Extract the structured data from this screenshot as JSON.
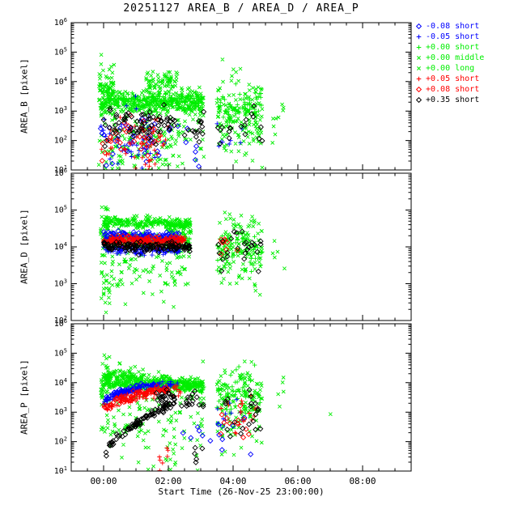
{
  "palette": {
    "black": "#000000",
    "blue": "#0000ff",
    "green": "#00ee00",
    "red": "#ff0000"
  },
  "legend": {
    "items": [
      {
        "symbol": "diamond",
        "color": "blue",
        "label": "-0.08 short"
      },
      {
        "symbol": "plus",
        "color": "blue",
        "label": "-0.05 short"
      },
      {
        "symbol": "plus",
        "color": "green",
        "label": "+0.00 short"
      },
      {
        "symbol": "cross",
        "color": "green",
        "label": "+0.00 middle"
      },
      {
        "symbol": "cross",
        "color": "green",
        "label": "+0.00 long"
      },
      {
        "symbol": "plus",
        "color": "red",
        "label": "+0.05 short"
      },
      {
        "symbol": "diamond",
        "color": "red",
        "label": "+0.08 short"
      },
      {
        "symbol": "diamond",
        "color": "black",
        "label": "+0.35 short"
      }
    ]
  },
  "chart_data": {
    "type": "scatter",
    "title": "20251127 AREA_B / AREA_D / AREA_P",
    "xlabel": "Start Time (26-Nov-25 23:00:00)",
    "x_axis": {
      "min": 0,
      "max": 10.5,
      "unit": "hours since 26-Nov-25 23:00:00",
      "minor_step": 0.5,
      "major_ticks": [
        {
          "pos": 1,
          "label": "00:00"
        },
        {
          "pos": 3,
          "label": "02:00"
        },
        {
          "pos": 5,
          "label": "04:00"
        },
        {
          "pos": 7,
          "label": "06:00"
        },
        {
          "pos": 9,
          "label": "08:00"
        }
      ]
    },
    "panels": [
      {
        "ylabel": "AREA_B [pixel]",
        "ylog_min": 1,
        "ylog_max": 6,
        "series": [
          {
            "name": "+0.00 long",
            "symbol": "cross",
            "color": "green",
            "clusters": [
              [
                0.85,
                4.1,
                2.2,
                2.2,
                0.6,
                150
              ],
              [
                4.5,
                5.9,
                2.2,
                2.2,
                0.6,
                50
              ],
              [
                1.0,
                3.0,
                1.3,
                1.3,
                0.25,
                30
              ],
              [
                6.2,
                6.6,
                2.4,
                2.4,
                0.4,
                4
              ]
            ]
          },
          {
            "name": "+0.00 middle",
            "symbol": "cross",
            "color": "green",
            "clusters": [
              [
                0.85,
                1.35,
                3.6,
                3.6,
                0.45,
                90
              ],
              [
                1.0,
                4.1,
                3.25,
                3.3,
                0.25,
                240
              ],
              [
                2.3,
                3.3,
                3.95,
                4.05,
                0.18,
                70
              ],
              [
                4.5,
                5.9,
                3.0,
                3.0,
                0.55,
                110
              ],
              [
                6.2,
                6.6,
                2.7,
                2.7,
                0.45,
                5
              ]
            ]
          },
          {
            "name": "+0.00 short",
            "symbol": "plus",
            "color": "green",
            "clusters": [
              [
                0.9,
                4.1,
                3.3,
                3.35,
                0.12,
                220
              ],
              [
                4.5,
                5.9,
                3.1,
                3.1,
                0.3,
                60
              ]
            ]
          },
          {
            "name": "-0.05 short",
            "symbol": "plus",
            "color": "blue",
            "clusters": [
              [
                0.9,
                2.6,
                2.0,
                2.0,
                0.45,
                35
              ],
              [
                4.5,
                5.3,
                2.1,
                2.1,
                0.35,
                8
              ]
            ]
          },
          {
            "name": "-0.08 short",
            "symbol": "diamond",
            "color": "blue",
            "clusters": [
              [
                0.9,
                2.6,
                2.1,
                2.1,
                0.45,
                35
              ],
              [
                2.6,
                4.0,
                1.9,
                1.9,
                0.4,
                12
              ]
            ]
          },
          {
            "name": "+0.05 short",
            "symbol": "plus",
            "color": "red",
            "clusters": [
              [
                0.9,
                3.0,
                1.8,
                1.8,
                0.45,
                45
              ],
              [
                2.0,
                2.6,
                1.2,
                1.2,
                0.15,
                8
              ]
            ]
          },
          {
            "name": "+0.08 short",
            "symbol": "diamond",
            "color": "red",
            "clusters": [
              [
                0.9,
                3.0,
                1.95,
                1.95,
                0.45,
                32
              ]
            ]
          },
          {
            "name": "+0.35 short",
            "symbol": "diamond",
            "color": "black",
            "clusters": [
              [
                1.0,
                3.2,
                2.5,
                2.6,
                0.3,
                70
              ],
              [
                3.4,
                4.1,
                2.4,
                2.4,
                0.3,
                15
              ],
              [
                4.5,
                5.9,
                2.45,
                2.45,
                0.35,
                18
              ]
            ]
          }
        ]
      },
      {
        "ylabel": "AREA_D [pixel]",
        "ylog_min": 2,
        "ylog_max": 6,
        "series": [
          {
            "name": "+0.00 long",
            "symbol": "cross",
            "color": "green",
            "clusters": [
              [
                0.9,
                3.7,
                3.5,
                3.5,
                0.45,
                110
              ],
              [
                0.9,
                1.2,
                2.85,
                2.85,
                0.3,
                14
              ],
              [
                4.5,
                5.9,
                3.5,
                3.5,
                0.5,
                45
              ]
            ]
          },
          {
            "name": "+0.00 middle",
            "symbol": "cross",
            "color": "green",
            "clusters": [
              [
                0.9,
                1.15,
                4.1,
                4.6,
                0.35,
                40
              ],
              [
                1.0,
                3.7,
                4.68,
                4.62,
                0.07,
                230
              ],
              [
                3.0,
                3.7,
                4.5,
                4.4,
                0.13,
                35
              ],
              [
                4.5,
                5.9,
                4.1,
                4.1,
                0.45,
                90
              ],
              [
                6.2,
                6.9,
                3.9,
                3.9,
                0.35,
                5
              ]
            ]
          },
          {
            "name": "+0.00 short",
            "symbol": "plus",
            "color": "green",
            "clusters": [
              [
                1.0,
                3.7,
                4.17,
                4.14,
                0.1,
                200
              ],
              [
                4.5,
                5.9,
                4.0,
                4.0,
                0.3,
                50
              ]
            ]
          },
          {
            "name": "-0.05 short",
            "symbol": "plus",
            "color": "blue",
            "clusters": [
              [
                1.0,
                3.35,
                3.93,
                3.9,
                0.06,
                120
              ]
            ]
          },
          {
            "name": "-0.08 short",
            "symbol": "diamond",
            "color": "blue",
            "clusters": [
              [
                1.0,
                3.35,
                4.3,
                4.27,
                0.07,
                120
              ]
            ]
          },
          {
            "name": "+0.05 short",
            "symbol": "plus",
            "color": "red",
            "clusters": [
              [
                1.0,
                3.5,
                4.12,
                4.1,
                0.06,
                110
              ]
            ]
          },
          {
            "name": "+0.08 short",
            "symbol": "diamond",
            "color": "red",
            "clusters": [
              [
                1.0,
                3.5,
                4.2,
                4.18,
                0.06,
                100
              ],
              [
                4.6,
                5.2,
                4.1,
                4.1,
                0.15,
                10
              ]
            ]
          },
          {
            "name": "+0.35 short",
            "symbol": "diamond",
            "color": "black",
            "clusters": [
              [
                1.0,
                3.7,
                4.03,
                4.0,
                0.06,
                130
              ],
              [
                4.5,
                5.9,
                3.95,
                3.95,
                0.25,
                25
              ]
            ]
          }
        ]
      },
      {
        "ylabel": "AREA_P [pixel]",
        "ylog_min": 1,
        "ylog_max": 6,
        "series": [
          {
            "name": "+0.00 long",
            "symbol": "cross",
            "color": "green",
            "clusters": [
              [
                0.9,
                4.1,
                2.8,
                2.8,
                0.6,
                130
              ],
              [
                4.5,
                5.9,
                2.7,
                2.7,
                0.55,
                45
              ],
              [
                2.9,
                3.3,
                1.7,
                1.7,
                0.3,
                10
              ]
            ]
          },
          {
            "name": "+0.00 middle",
            "symbol": "cross",
            "color": "green",
            "clusters": [
              [
                0.9,
                1.2,
                3.7,
                4.3,
                0.4,
                50
              ],
              [
                1.0,
                4.1,
                4.15,
                3.95,
                0.12,
                250
              ],
              [
                1.3,
                2.2,
                4.42,
                4.3,
                0.13,
                28
              ],
              [
                4.5,
                5.9,
                3.6,
                3.6,
                0.5,
                100
              ],
              [
                6.2,
                6.6,
                3.3,
                3.3,
                0.4,
                5
              ],
              [
                7.95,
                8.05,
                2.9,
                2.9,
                0.05,
                1
              ]
            ]
          },
          {
            "name": "+0.00 short",
            "symbol": "plus",
            "color": "green",
            "clusters": [
              [
                1.0,
                4.1,
                3.98,
                3.85,
                0.1,
                220
              ],
              [
                4.5,
                5.9,
                3.5,
                3.5,
                0.4,
                60
              ]
            ]
          },
          {
            "name": "-0.05 short",
            "symbol": "plus",
            "color": "blue",
            "clusters": [
              [
                1.0,
                2.6,
                3.25,
                3.9,
                0.06,
                70,
                0.5
              ],
              [
                2.6,
                3.3,
                3.9,
                3.92,
                0.07,
                22
              ],
              [
                4.5,
                5.3,
                2.9,
                2.9,
                0.4,
                10
              ]
            ]
          },
          {
            "name": "-0.08 short",
            "symbol": "diamond",
            "color": "blue",
            "clusters": [
              [
                1.0,
                2.6,
                3.32,
                3.95,
                0.06,
                55,
                0.5
              ],
              [
                3.4,
                5.6,
                2.3,
                2.3,
                0.4,
                14
              ]
            ]
          },
          {
            "name": "+0.05 short",
            "symbol": "plus",
            "color": "red",
            "clusters": [
              [
                1.0,
                3.0,
                2.95,
                3.75,
                0.07,
                80,
                0.5
              ],
              [
                3.0,
                3.4,
                3.75,
                3.8,
                0.1,
                12
              ],
              [
                2.6,
                3.0,
                1.5,
                1.5,
                0.2,
                7
              ],
              [
                4.5,
                5.9,
                3.0,
                3.0,
                0.4,
                18
              ]
            ]
          },
          {
            "name": "+0.08 short",
            "symbol": "diamond",
            "color": "red",
            "clusters": [
              [
                1.0,
                3.0,
                3.05,
                3.8,
                0.07,
                55,
                0.5
              ],
              [
                4.5,
                5.5,
                2.9,
                2.9,
                0.35,
                12
              ]
            ]
          },
          {
            "name": "+0.35 short",
            "symbol": "diamond",
            "color": "black",
            "clusters": [
              [
                1.05,
                3.2,
                1.45,
                3.35,
                0.07,
                90,
                0.6
              ],
              [
                2.6,
                3.2,
                3.45,
                3.65,
                0.13,
                18
              ],
              [
                3.8,
                4.05,
                1.55,
                1.6,
                0.15,
                5
              ],
              [
                3.3,
                4.1,
                3.3,
                3.45,
                0.2,
                15
              ],
              [
                4.5,
                5.9,
                2.9,
                2.9,
                0.45,
                20
              ]
            ]
          }
        ]
      }
    ]
  }
}
